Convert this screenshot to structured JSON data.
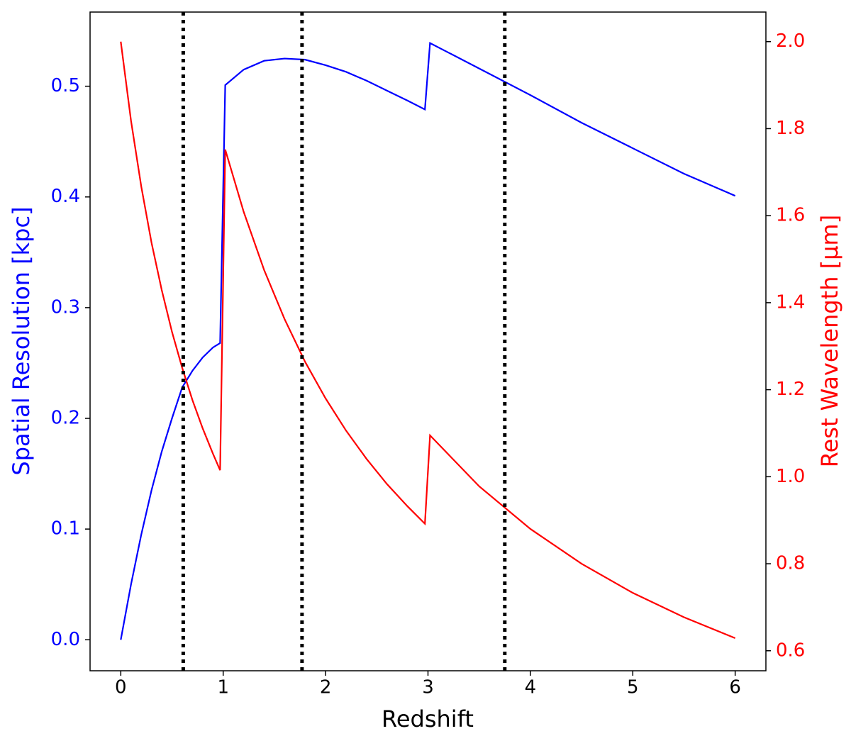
{
  "chart_data": {
    "type": "line",
    "x_label": "Redshift",
    "y_label": "Spatial Resolution [kpc]",
    "y2_label": "Rest Wavelength [μm]",
    "x": [
      0,
      0.1,
      0.2,
      0.3,
      0.4,
      0.5,
      0.6,
      0.7,
      0.8,
      0.9,
      0.97,
      1.02,
      1.2,
      1.4,
      1.6,
      1.8,
      2.0,
      2.2,
      2.4,
      2.6,
      2.8,
      2.97,
      3.02,
      3.5,
      4.0,
      4.5,
      5.0,
      5.5,
      6.0
    ],
    "series": [
      {
        "color": "#0000ff",
        "values": [
          0,
          0.05,
          0.095,
          0.135,
          0.17,
          0.2,
          0.228,
          0.243,
          0.255,
          0.264,
          0.268,
          0.501,
          0.515,
          0.523,
          0.525,
          0.524,
          0.519,
          0.513,
          0.505,
          0.496,
          0.487,
          0.479,
          0.539,
          0.516,
          0.492,
          0.467,
          0.444,
          0.421,
          0.401
        ]
      },
      {
        "color": "#ff0000",
        "axis": "y2",
        "values": [
          2.0,
          1.818,
          1.667,
          1.538,
          1.429,
          1.333,
          1.25,
          1.176,
          1.111,
          1.053,
          1.015,
          1.752,
          1.609,
          1.475,
          1.362,
          1.264,
          1.18,
          1.106,
          1.041,
          0.983,
          0.932,
          0.892,
          1.095,
          0.978,
          0.88,
          0.8,
          0.733,
          0.677,
          0.629
        ]
      }
    ],
    "vlines": [
      0.61,
      1.77,
      3.75
    ],
    "vline_color": "#000000",
    "xlim": [
      -0.3,
      6.3
    ],
    "xticks": [
      0,
      1,
      2,
      3,
      4,
      5,
      6
    ],
    "ylim": [
      -0.028,
      0.567
    ],
    "yticks": [
      {
        "value": 0,
        "label": "0.0"
      },
      0.1,
      0.2,
      0.3,
      0.4,
      0.5
    ],
    "y_color": "#0000ff",
    "y2lim": [
      0.554,
      2.068
    ],
    "y2ticks": [
      0.6,
      0.8,
      {
        "value": 1,
        "label": "1.0"
      },
      1.2,
      1.4,
      1.6,
      1.8,
      {
        "value": 2,
        "label": "2.0"
      }
    ],
    "y2_color": "#ff0000"
  }
}
